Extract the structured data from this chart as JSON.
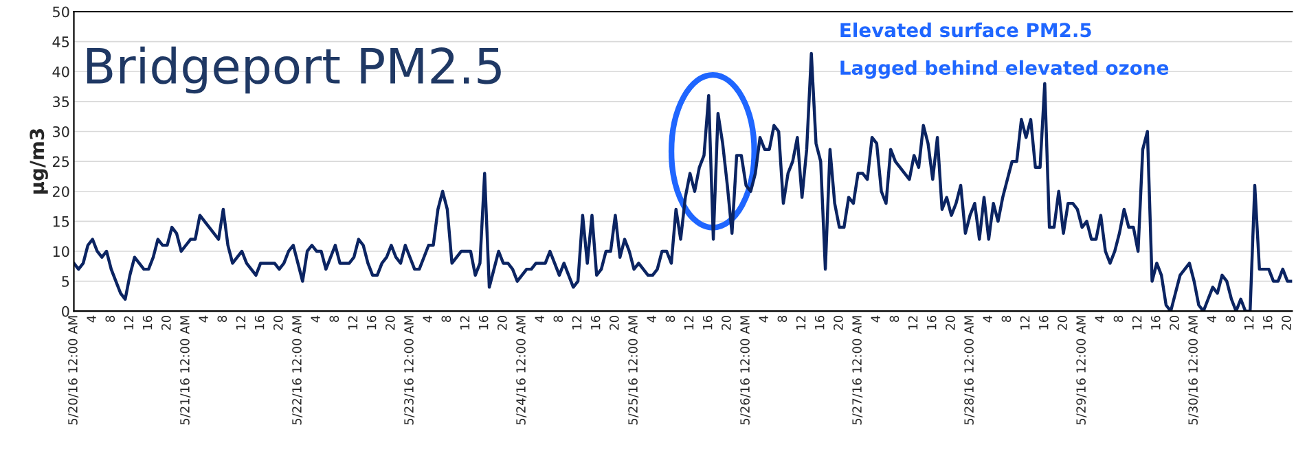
{
  "chart_data": {
    "type": "line",
    "title": "Bridgeport PM2.5",
    "ylabel": "µg/m3",
    "annotations": [
      "Elevated surface PM2.5",
      "Lagged behind elevated ozone"
    ],
    "categories": [
      "5/20/16 12:00 AM",
      null,
      null,
      null,
      "4",
      null,
      null,
      null,
      "8",
      null,
      null,
      null,
      "12",
      null,
      null,
      null,
      "16",
      null,
      null,
      null,
      "20",
      null,
      null,
      null,
      "5/21/16 12:00 AM",
      null,
      null,
      null,
      "4",
      null,
      null,
      null,
      "8",
      null,
      null,
      null,
      "12",
      null,
      null,
      null,
      "16",
      null,
      null,
      null,
      "20",
      null,
      null,
      null,
      "5/22/16 12:00 AM",
      null,
      null,
      null,
      "4",
      null,
      null,
      null,
      "8",
      null,
      null,
      null,
      "12",
      null,
      null,
      null,
      "16",
      null,
      null,
      null,
      "20",
      null,
      null,
      null,
      "5/23/16 12:00 AM",
      null,
      null,
      null,
      "4",
      null,
      null,
      null,
      "8",
      null,
      null,
      null,
      "12",
      null,
      null,
      null,
      "16",
      null,
      null,
      null,
      "20",
      null,
      null,
      null,
      "5/24/16 12:00 AM",
      null,
      null,
      null,
      "4",
      null,
      null,
      null,
      "8",
      null,
      null,
      null,
      "12",
      null,
      null,
      null,
      "16",
      null,
      null,
      null,
      "20",
      null,
      null,
      null,
      "5/25/16 12:00 AM",
      null,
      null,
      null,
      "4",
      null,
      null,
      null,
      "8",
      null,
      null,
      null,
      "12",
      null,
      null,
      null,
      "16",
      null,
      null,
      null,
      "20",
      null,
      null,
      null,
      "5/26/16 12:00 AM",
      null,
      null,
      null,
      "4",
      null,
      null,
      null,
      "8",
      null,
      null,
      null,
      "12",
      null,
      null,
      null,
      "16",
      null,
      null,
      null,
      "20",
      null,
      null,
      null,
      "5/27/16 12:00 AM",
      null,
      null,
      null,
      "4",
      null,
      null,
      null,
      "8",
      null,
      null,
      null,
      "12",
      null,
      null,
      null,
      "16",
      null,
      null,
      null,
      "20",
      null,
      null,
      null,
      "5/28/16 12:00 AM",
      null,
      null,
      null,
      "4",
      null,
      null,
      null,
      "8",
      null,
      null,
      null,
      "12",
      null,
      null,
      null,
      "16",
      null,
      null,
      null,
      "20",
      null,
      null,
      null,
      "5/29/16 12:00 AM",
      null,
      null,
      null,
      "4",
      null,
      null,
      null,
      "8",
      null,
      null,
      null,
      "12",
      null,
      null,
      null,
      "16",
      null,
      null,
      null,
      "20",
      null,
      null,
      null,
      "5/30/16 12:00 AM",
      null,
      null,
      null,
      "4",
      null,
      null,
      null,
      "8",
      null,
      null,
      null,
      "12",
      null,
      null,
      null,
      "16",
      null,
      null,
      null,
      "20",
      null
    ],
    "series": [
      {
        "color": "#0b2462",
        "values": [
          8,
          7,
          8,
          11,
          12,
          10,
          9,
          10,
          7,
          5,
          3,
          2,
          6,
          9,
          8,
          7,
          7,
          9,
          12,
          11,
          11,
          14,
          13,
          10,
          11,
          12,
          12,
          16,
          15,
          14,
          13,
          12,
          17,
          11,
          8,
          9,
          10,
          8,
          7,
          6,
          8,
          8,
          8,
          8,
          7,
          8,
          10,
          11,
          8,
          5,
          10,
          11,
          10,
          10,
          7,
          9,
          11,
          8,
          8,
          8,
          9,
          12,
          11,
          8,
          6,
          6,
          8,
          9,
          11,
          9,
          8,
          11,
          9,
          7,
          7,
          9,
          11,
          11,
          17,
          20,
          17,
          8,
          9,
          10,
          10,
          10,
          6,
          8,
          23,
          4,
          7,
          10,
          8,
          8,
          7,
          5,
          6,
          7,
          7,
          8,
          8,
          8,
          10,
          8,
          6,
          8,
          6,
          4,
          5,
          16,
          8,
          16,
          6,
          7,
          10,
          10,
          16,
          9,
          12,
          10,
          7,
          8,
          7,
          6,
          6,
          7,
          10,
          10,
          8,
          17,
          12,
          19,
          23,
          20,
          24,
          26,
          36,
          12,
          33,
          28,
          21,
          13,
          26,
          26,
          21,
          20,
          23,
          29,
          27,
          27,
          31,
          30,
          18,
          23,
          25,
          29,
          19,
          27,
          43,
          28,
          25,
          7,
          27,
          18,
          14,
          14,
          19,
          18,
          23,
          23,
          22,
          29,
          28,
          20,
          18,
          27,
          25,
          24,
          23,
          22,
          26,
          24,
          31,
          28,
          22,
          29,
          17,
          19,
          16,
          18,
          21,
          13,
          16,
          18,
          12,
          19,
          12,
          18,
          15,
          19,
          22,
          25,
          25,
          32,
          29,
          32,
          24,
          24,
          38,
          14,
          14,
          20,
          13,
          18,
          18,
          17,
          14,
          15,
          12,
          12,
          16,
          10,
          8,
          10,
          13,
          17,
          14,
          14,
          10,
          27,
          30,
          5,
          8,
          6,
          1,
          0,
          3,
          6,
          7,
          8,
          5,
          1,
          0,
          2,
          4,
          3,
          6,
          5,
          2,
          0,
          2,
          0,
          0,
          21,
          7,
          7,
          7,
          5,
          5,
          7,
          5,
          5
        ]
      }
    ],
    "ylim": [
      0,
      50
    ],
    "yticks": [
      0,
      5,
      10,
      15,
      20,
      25,
      30,
      35,
      40,
      45,
      50
    ],
    "grid": "y",
    "legend": false,
    "marker": "none",
    "line_style": "solid"
  }
}
